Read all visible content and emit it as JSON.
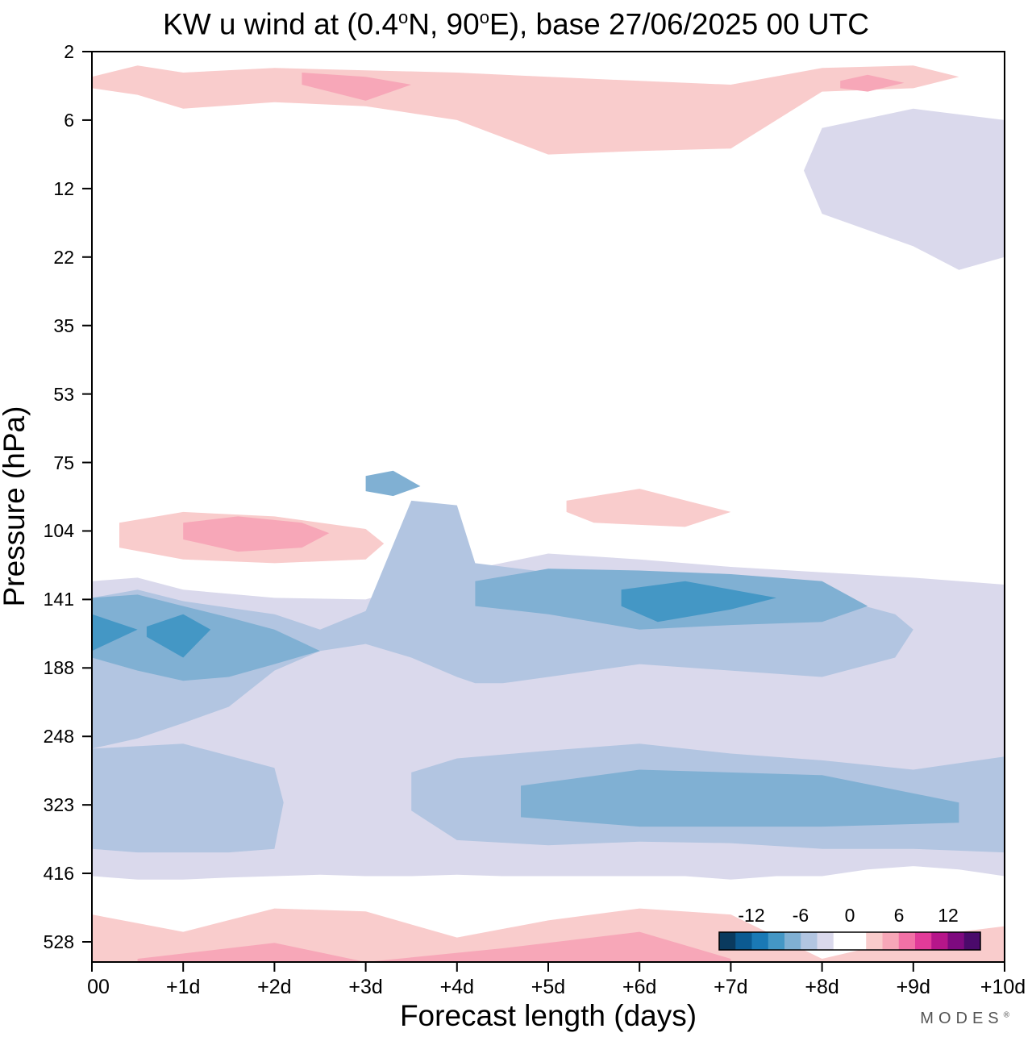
{
  "chart_data": {
    "type": "heatmap",
    "title_main": "KW u wind at (0.4",
    "title_deg1": "o",
    "title_mid": "N, 90",
    "title_deg2": "o",
    "title_end": "E),  base 27/06/2025  00 UTC",
    "xlabel": "Forecast length (days)",
    "ylabel": "Pressure (hPa)",
    "x_ticks": [
      "00",
      "+1d",
      "+2d",
      "+3d",
      "+4d",
      "+5d",
      "+6d",
      "+7d",
      "+8d",
      "+9d",
      "+10d"
    ],
    "xlim": [
      0,
      10
    ],
    "y_ticks": [
      2,
      6,
      12,
      22,
      35,
      53,
      75,
      104,
      141,
      188,
      248,
      323,
      416,
      528
    ],
    "y_scale": "log",
    "y_inverted": true,
    "legend": {
      "placement": "bottom-right",
      "tick_labels": [
        "-12",
        "-6",
        "0",
        "6",
        "12"
      ],
      "colors": [
        "#0a3a5e",
        "#0b5a91",
        "#1a79b5",
        "#4497c5",
        "#80b0d3",
        "#b2c5e1",
        "#dad9ec",
        "#ffffff",
        "#ffffff",
        "#f9cccc",
        "#f7a7b8",
        "#f271a6",
        "#e23b99",
        "#b6168a",
        "#7e0a7f",
        "#4b0a6b"
      ]
    },
    "regions": [
      {
        "level": -1,
        "x": [
          0.0,
          0.5,
          1.0,
          2.0,
          3.0,
          4.0,
          5.0,
          6.0,
          7.0,
          8.0,
          9.0,
          10.0,
          10.0,
          9.5,
          9.0,
          8.5,
          8.0,
          7.5,
          7.0,
          6.5,
          6.0,
          5.0,
          4.5,
          4.0,
          3.5,
          3.0,
          2.5,
          2.0,
          1.5,
          1.0,
          0.5,
          0.0
        ],
        "y": [
          130,
          128,
          135,
          140,
          141,
          125,
          115,
          118,
          122,
          125,
          128,
          132,
          420,
          410,
          405,
          410,
          420,
          420,
          425,
          420,
          420,
          420,
          420,
          418,
          420,
          420,
          418,
          420,
          422,
          425,
          425,
          420
        ]
      },
      {
        "level": -2,
        "x": [
          0.0,
          0.5,
          1.0,
          2.0,
          2.5,
          3.0,
          3.5,
          4.0,
          4.2,
          5.0,
          6.0,
          7.0,
          8.0,
          8.8,
          9.0,
          8.8,
          8.0,
          7.0,
          6.0,
          5.0,
          4.5,
          4.2,
          4.0,
          3.5,
          3.0,
          2.5,
          2.0,
          1.5,
          1.0,
          0.5,
          0.0
        ],
        "y": [
          140,
          135,
          142,
          150,
          160,
          148,
          90,
          92,
          120,
          125,
          126,
          130,
          138,
          150,
          160,
          180,
          195,
          190,
          185,
          195,
          200,
          200,
          195,
          180,
          170,
          175,
          190,
          220,
          235,
          250,
          260
        ]
      },
      {
        "level": -2,
        "x": [
          0.0,
          1.0,
          2.0,
          2.1,
          2.0,
          1.5,
          1.0,
          0.5,
          0.0
        ],
        "y": [
          260,
          255,
          280,
          320,
          380,
          385,
          385,
          385,
          380
        ]
      },
      {
        "level": -2,
        "x": [
          3.5,
          4.0,
          5.0,
          6.0,
          7.0,
          8.0,
          9.0,
          10.0,
          10.0,
          9.0,
          8.0,
          7.0,
          6.0,
          5.0,
          4.0,
          3.5
        ],
        "y": [
          285,
          270,
          262,
          255,
          265,
          272,
          282,
          268,
          385,
          380,
          380,
          372,
          370,
          375,
          368,
          330
        ]
      },
      {
        "level": -3,
        "x": [
          0.0,
          0.5,
          1.0,
          1.5,
          2.0,
          2.5,
          2.0,
          1.5,
          1.0,
          0.5,
          0.0
        ],
        "y": [
          140,
          138,
          145,
          152,
          160,
          175,
          185,
          195,
          198,
          190,
          180
        ]
      },
      {
        "level": -3,
        "x": [
          4.2,
          5.0,
          6.0,
          7.0,
          8.0,
          8.5,
          8.0,
          7.0,
          6.0,
          5.0,
          4.2
        ],
        "y": [
          130,
          123,
          124,
          126,
          130,
          145,
          155,
          157,
          160,
          150,
          145
        ]
      },
      {
        "level": -3,
        "x": [
          3.0,
          3.3,
          3.6,
          3.3,
          3.0
        ],
        "y": [
          80,
          78,
          84,
          88,
          86
        ]
      },
      {
        "level": -3,
        "x": [
          4.7,
          6.0,
          8.0,
          9.5,
          9.5,
          8.0,
          6.0,
          4.7
        ],
        "y": [
          300,
          282,
          288,
          320,
          345,
          350,
          350,
          338
        ]
      },
      {
        "level": -4,
        "x": [
          0.0,
          0.5,
          0.0
        ],
        "y": [
          150,
          160,
          175
        ]
      },
      {
        "level": -4,
        "x": [
          0.6,
          1.0,
          1.3,
          1.0,
          0.6
        ],
        "y": [
          158,
          150,
          160,
          180,
          165
        ]
      },
      {
        "level": -4,
        "x": [
          5.8,
          6.5,
          7.5,
          7.0,
          6.2,
          5.8
        ],
        "y": [
          135,
          130,
          140,
          147,
          155,
          145
        ]
      },
      {
        "level": 1,
        "x": [
          0.3,
          1.0,
          2.0,
          3.0,
          3.2,
          3.0,
          2.0,
          1.0,
          0.3
        ],
        "y": [
          100,
          95,
          97,
          103,
          110,
          118,
          120,
          118,
          112
        ]
      },
      {
        "level": 2,
        "x": [
          1.0,
          1.6,
          2.3,
          2.6,
          2.3,
          1.6,
          1.0
        ],
        "y": [
          100,
          97,
          100,
          105,
          112,
          114,
          108
        ]
      },
      {
        "level": 1,
        "x": [
          5.2,
          6.0,
          7.0,
          6.5,
          5.5,
          5.2
        ],
        "y": [
          90,
          85,
          95,
          102,
          100,
          95
        ]
      },
      {
        "level": 1,
        "x": [
          0.0,
          1.0,
          2.0,
          3.0,
          4.0,
          5.0,
          6.0,
          7.0,
          8.0,
          9.0,
          10.0,
          10.0,
          0.0
        ],
        "y": [
          480,
          510,
          470,
          475,
          520,
          490,
          470,
          480,
          560,
          520,
          500,
          650,
          650
        ]
      },
      {
        "level": 2,
        "x": [
          0.5,
          2.0,
          3.0,
          4.5,
          6.0,
          7.0,
          7.0,
          0.5
        ],
        "y": [
          560,
          530,
          600,
          540,
          510,
          560,
          650,
          650
        ]
      },
      {
        "level": 1,
        "x": [
          0.0,
          0.5,
          1.0,
          2.0,
          3.0,
          4.0,
          5.0,
          6.0,
          7.0,
          8.0,
          9.0,
          9.5,
          9.0,
          8.0,
          7.0,
          6.0,
          5.0,
          4.0,
          3.0,
          2.0,
          1.0,
          0.5,
          0.0
        ],
        "y": [
          3.0,
          2.5,
          2.8,
          2.6,
          2.7,
          2.8,
          3.0,
          3.2,
          3.4,
          2.6,
          2.5,
          3.0,
          3.6,
          3.8,
          8.0,
          8.2,
          8.5,
          6.0,
          4.8,
          4.5,
          5.0,
          4.0,
          3.6
        ]
      },
      {
        "level": 2,
        "x": [
          2.3,
          3.0,
          3.5,
          3.0,
          2.3
        ],
        "y": [
          2.8,
          3.0,
          3.4,
          4.4,
          3.4
        ]
      },
      {
        "level": 2,
        "x": [
          8.2,
          8.5,
          8.9,
          8.5,
          8.2
        ],
        "y": [
          3.2,
          2.9,
          3.3,
          3.8,
          3.6
        ]
      },
      {
        "level": -1,
        "x": [
          8.0,
          9.0,
          10.0,
          10.0,
          9.5,
          9.0,
          8.0,
          7.8
        ],
        "y": [
          6.5,
          5.0,
          6.0,
          22.0,
          24.0,
          20.0,
          15.0,
          10.0
        ]
      }
    ]
  },
  "brand_text": "MODES",
  "brand_mark": "®"
}
